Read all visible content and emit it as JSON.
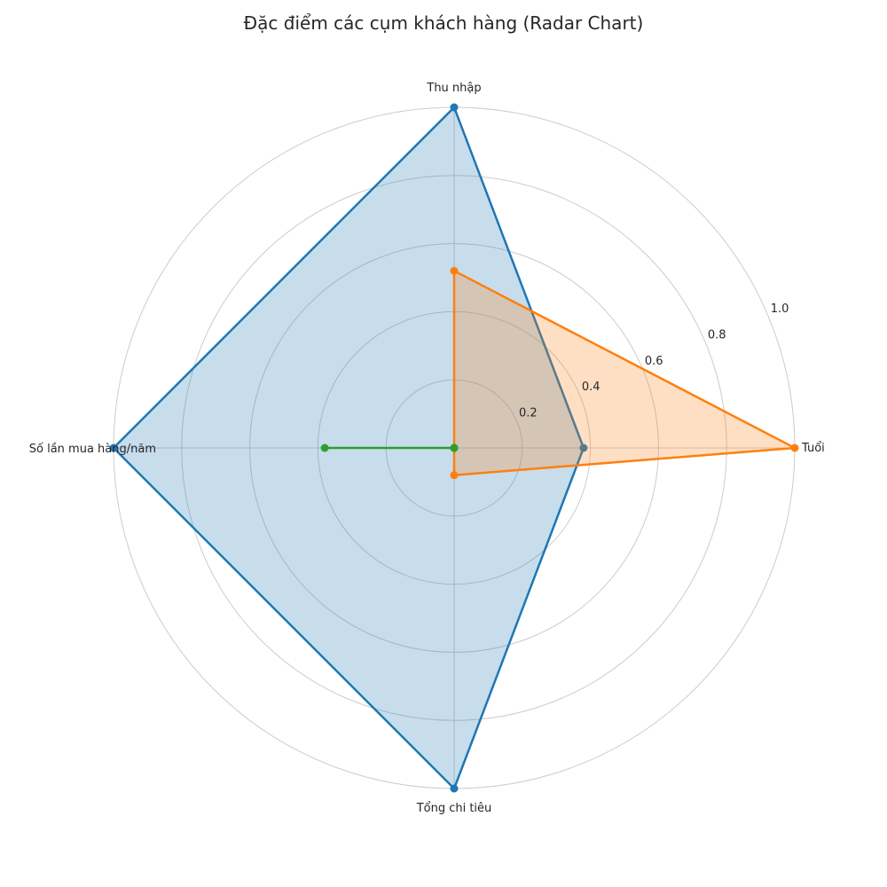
{
  "chart_data": {
    "type": "radar",
    "title": "Đặc điểm các cụm khách hàng (Radar Chart)",
    "axes": [
      "Tuổi",
      "Thu nhập",
      "Số lần mua hàng/năm",
      "Tổng chi tiêu"
    ],
    "r_ticks": [
      "0.2",
      "0.4",
      "0.6",
      "0.8",
      "1.0"
    ],
    "r_tick_values": [
      0.2,
      0.4,
      0.6,
      0.8,
      1.0
    ],
    "rlim": [
      0,
      1.0
    ],
    "grid": true,
    "legend": "none",
    "series": [
      {
        "color": "#1f77b4",
        "values": [
          0.38,
          1.0,
          1.0,
          1.0
        ]
      },
      {
        "color": "#ff7f0e",
        "values": [
          1.0,
          0.52,
          0.0,
          0.08
        ]
      },
      {
        "color": "#2ca02c",
        "values": [
          0.0,
          0.0,
          0.38,
          0.0
        ]
      }
    ]
  }
}
